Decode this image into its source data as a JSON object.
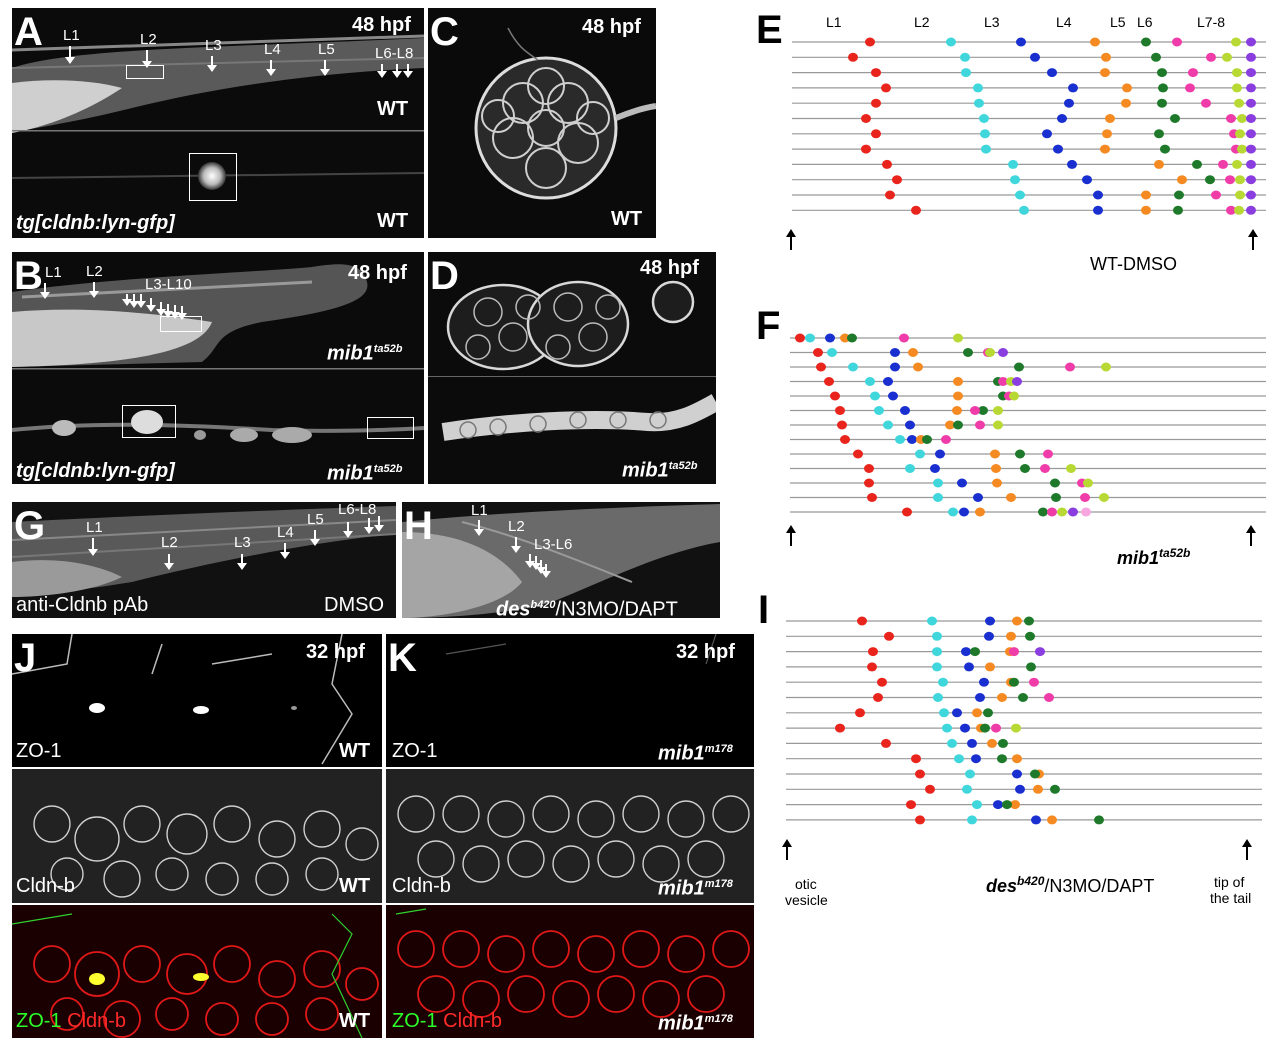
{
  "panels": {
    "A": {
      "letter": "A",
      "stage": "48 hpf",
      "genotype_top": "WT",
      "genotype_bottom": "WT",
      "transgene": "tg[cldnb:lyn-gfp]",
      "markers": [
        "L1",
        "L2",
        "L3",
        "L4",
        "L5",
        "L6-L8"
      ]
    },
    "B": {
      "letter": "B",
      "stage": "48 hpf",
      "genotype_top": "mib1",
      "genotype_top_sup": "ta52b",
      "genotype_bottom": "mib1",
      "genotype_bottom_sup": "ta52b",
      "transgene": "tg[cldnb:lyn-gfp]",
      "markers": [
        "L1",
        "L2",
        "L3-L10"
      ]
    },
    "C": {
      "letter": "C",
      "stage": "48 hpf",
      "genotype": "WT"
    },
    "D": {
      "letter": "D",
      "stage": "48 hpf",
      "genotype": "mib1",
      "genotype_sup": "ta52b"
    },
    "G": {
      "letter": "G",
      "antibody": "anti-Cldnb pAb",
      "treatment": "DMSO",
      "markers": [
        "L1",
        "L2",
        "L3",
        "L4",
        "L5",
        "L6-L8"
      ]
    },
    "H": {
      "letter": "H",
      "treatment_pre": "des",
      "treatment_sup": "b420",
      "treatment_post": "/N3MO/DAPT",
      "markers": [
        "L1",
        "L2",
        "L3-L6"
      ]
    },
    "J": {
      "letter": "J",
      "stage": "32 hpf",
      "row1": "ZO-1",
      "row2": "Cldn-b",
      "row3_a": "ZO-1",
      "row3_b": "Cldn-b",
      "genotype": "WT"
    },
    "K": {
      "letter": "K",
      "stage": "32 hpf",
      "row1": "ZO-1",
      "row2": "Cldn-b",
      "row3_a": "ZO-1",
      "row3_b": "Cldn-b",
      "genotype": "mib1",
      "genotype_sup": "m178"
    }
  },
  "diagrams": {
    "E": {
      "letter": "E",
      "labels": [
        "L1",
        "L2",
        "L3",
        "L4",
        "L5",
        "L6",
        "L7-8"
      ],
      "condition": "WT-DMSO"
    },
    "F": {
      "letter": "F",
      "condition": "mib1",
      "condition_sup": "ta52b"
    },
    "I": {
      "letter": "I",
      "condition_pre": "des",
      "condition_sup": "b420",
      "condition_post": "/N3MO/DAPT",
      "left_label_1": "otic",
      "left_label_2": "vesicle",
      "right_label_1": "tip of",
      "right_label_2": "the tail"
    }
  },
  "colors": {
    "red": "#e8241c",
    "cyan": "#3fd6dc",
    "blue": "#1a2fd0",
    "orange": "#f58a22",
    "green": "#1e7a2a",
    "magenta": "#f03ca8",
    "lime": "#b8d934",
    "purple": "#8a3ee0",
    "pink": "#f7a6e0",
    "line": "#999999"
  },
  "chart_data": [
    {
      "type": "scatter",
      "name_letter": "E",
      "rows": [
        {
          "red": 870,
          "cyan": 951,
          "blue": 1021,
          "orange": 1095,
          "green": 1146,
          "magenta": 1177,
          "lime": 1236,
          "purple": 1251
        },
        {
          "red": 853,
          "cyan": 965,
          "blue": 1035,
          "orange": 1106,
          "green": 1156,
          "magenta": 1211,
          "lime": 1227,
          "purple": 1251
        },
        {
          "red": 876,
          "cyan": 966,
          "blue": 1052,
          "orange": 1105,
          "green": 1162,
          "magenta": 1193,
          "lime": 1237,
          "purple": 1251
        },
        {
          "red": 886,
          "cyan": 978,
          "blue": 1073,
          "orange": 1127,
          "green": 1163,
          "magenta": 1190,
          "lime": 1237,
          "purple": 1251
        },
        {
          "red": 876,
          "cyan": 979,
          "blue": 1069,
          "orange": 1126,
          "green": 1162,
          "magenta": 1206,
          "lime": 1239,
          "purple": 1251
        },
        {
          "red": 866,
          "cyan": 984,
          "blue": 1062,
          "orange": 1110,
          "green": 1175,
          "magenta": 1231,
          "lime": 1242,
          "purple": 1251
        },
        {
          "red": 876,
          "cyan": 985,
          "blue": 1047,
          "orange": 1107,
          "green": 1159,
          "magenta": 1234,
          "lime": 1240,
          "purple": 1251
        },
        {
          "red": 866,
          "cyan": 986,
          "blue": 1058,
          "orange": 1105,
          "green": 1165,
          "magenta": 1236,
          "lime": 1242,
          "purple": 1251
        },
        {
          "red": 887,
          "cyan": 1013,
          "blue": 1072,
          "orange": 1159,
          "green": 1197,
          "magenta": 1223,
          "lime": 1237,
          "purple": 1251
        },
        {
          "red": 897,
          "cyan": 1015,
          "blue": 1087,
          "orange": 1182,
          "green": 1210,
          "magenta": 1230,
          "lime": 1240,
          "purple": 1251
        },
        {
          "red": 890,
          "cyan": 1020,
          "blue": 1098,
          "orange": 1146,
          "green": 1179,
          "magenta": 1216,
          "lime": 1240,
          "purple": 1251
        },
        {
          "red": 916,
          "cyan": 1024,
          "blue": 1098,
          "orange": 1146,
          "green": 1178,
          "magenta": 1231,
          "lime": 1239,
          "purple": 1251
        }
      ]
    },
    {
      "type": "scatter",
      "name_letter": "F",
      "rows": [
        {
          "red": 800,
          "cyan": 810,
          "blue": 830,
          "orange": 845,
          "green": 852,
          "magenta": 904,
          "lime": 958
        },
        {
          "red": 818,
          "cyan": 832,
          "blue": 895,
          "orange": 913,
          "green": 968,
          "magenta": 988,
          "lime": 990,
          "purple": 1003
        },
        {
          "red": 821,
          "cyan": 853,
          "blue": 895,
          "orange": 918,
          "green": 1019,
          "magenta": 1070,
          "lime": 1106
        },
        {
          "red": 829,
          "cyan": 870,
          "blue": 888,
          "orange": 958,
          "green": 998,
          "magenta": 1003,
          "lime": 1011,
          "purple": 1017
        },
        {
          "red": 835,
          "cyan": 875,
          "blue": 893,
          "orange": 958,
          "green": 1003,
          "magenta": 1009,
          "lime": 1014
        },
        {
          "red": 840,
          "cyan": 879,
          "blue": 905,
          "orange": 957,
          "green": 983,
          "magenta": 975,
          "lime": 998
        },
        {
          "red": 842,
          "cyan": 888,
          "blue": 910,
          "orange": 950,
          "green": 958,
          "magenta": 980,
          "lime": 998
        },
        {
          "red": 845,
          "cyan": 900,
          "blue": 912,
          "orange": 921,
          "green": 927,
          "magenta": 946
        },
        {
          "red": 858,
          "cyan": 920,
          "blue": 940,
          "orange": 995,
          "green": 1020,
          "magenta": 1048
        },
        {
          "red": 869,
          "cyan": 910,
          "blue": 935,
          "orange": 996,
          "green": 1025,
          "magenta": 1045,
          "lime": 1071
        },
        {
          "red": 869,
          "cyan": 938,
          "blue": 962,
          "orange": 997,
          "green": 1055,
          "magenta": 1082,
          "lime": 1088
        },
        {
          "red": 872,
          "cyan": 938,
          "blue": 978,
          "orange": 1011,
          "green": 1056,
          "magenta": 1085,
          "lime": 1104
        },
        {
          "red": 907,
          "cyan": 953,
          "blue": 964,
          "orange": 980,
          "green": 1043,
          "magenta": 1052,
          "lime": 1062,
          "purple": 1073,
          "pink": 1086
        }
      ]
    },
    {
      "type": "scatter",
      "name_letter": "I",
      "rows": [
        {
          "red": 862,
          "cyan": 932,
          "blue": 990,
          "orange": 1017,
          "green": 1029
        },
        {
          "red": 889,
          "cyan": 937,
          "blue": 989,
          "orange": 1011,
          "green": 1030
        },
        {
          "red": 873,
          "cyan": 937,
          "blue": 966,
          "orange": 1010,
          "green": 975,
          "magenta": 1014,
          "purple": 1040
        },
        {
          "red": 872,
          "cyan": 937,
          "blue": 969,
          "orange": 990,
          "green": 1031
        },
        {
          "red": 882,
          "cyan": 943,
          "blue": 984,
          "orange": 1011,
          "green": 1014,
          "magenta": 1034
        },
        {
          "red": 878,
          "cyan": 938,
          "blue": 980,
          "orange": 1002,
          "green": 1023,
          "magenta": 1049
        },
        {
          "red": 860,
          "cyan": 944,
          "blue": 957,
          "orange": 977,
          "green": 988
        },
        {
          "red": 840,
          "cyan": 947,
          "blue": 965,
          "orange": 981,
          "green": 985,
          "magenta": 996,
          "lime": 1016
        },
        {
          "red": 886,
          "cyan": 952,
          "blue": 972,
          "orange": 992,
          "green": 1003
        },
        {
          "red": 916,
          "cyan": 959,
          "blue": 976,
          "orange": 1017,
          "green": 1002
        },
        {
          "red": 920,
          "cyan": 970,
          "blue": 1017,
          "orange": 1039,
          "green": 1035
        },
        {
          "red": 930,
          "cyan": 967,
          "blue": 1020,
          "orange": 1038,
          "green": 1055
        },
        {
          "red": 911,
          "cyan": 977,
          "blue": 998,
          "orange": 1015,
          "green": 1007
        },
        {
          "red": 920,
          "cyan": 972,
          "blue": 1036,
          "orange": 1052,
          "green": 1099
        }
      ]
    }
  ]
}
